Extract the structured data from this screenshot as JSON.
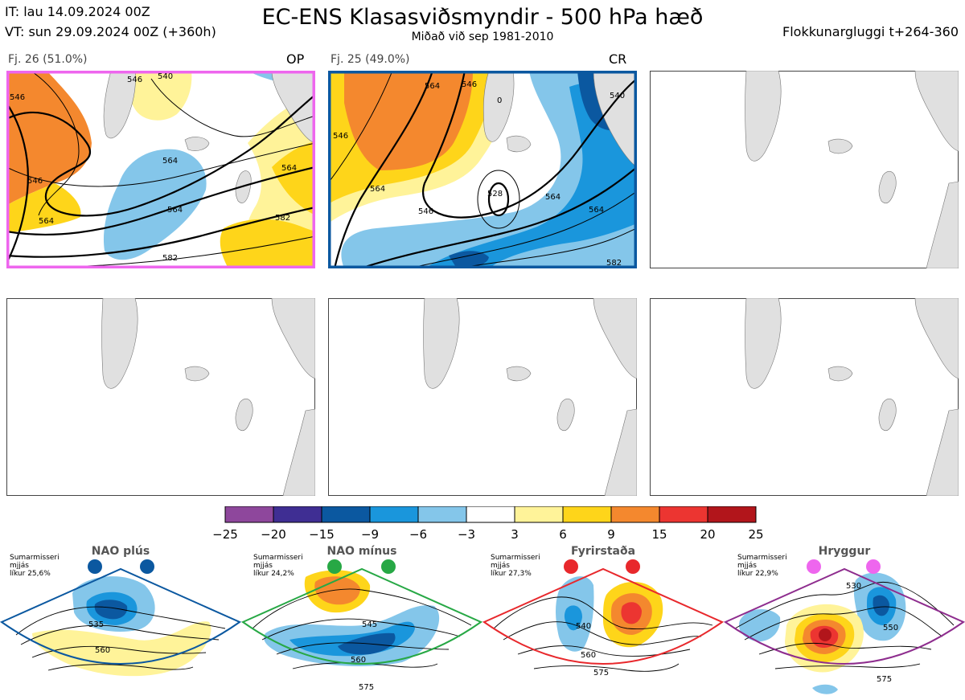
{
  "header": {
    "it_line": "IT: lau 14.09.2024 00Z",
    "vt_line": "VT: sun 29.09.2024 00Z  (+360h)",
    "title": "EC-ENS Klasasviðsmyndir - 500 hPa hæð",
    "subtitle": "Miðað við sep 1981-2010",
    "window": "Flokkunargluggi t+264-360"
  },
  "panels": [
    {
      "label": "Fj. 26 (51.0%)",
      "tag": "OP",
      "frame_color": "#ee66ee",
      "contours": [
        "546",
        "540",
        "546",
        "564",
        "564",
        "582",
        "546",
        "564",
        "564",
        "582"
      ]
    },
    {
      "label": "Fj. 25 (49.0%)",
      "tag": "CR",
      "frame_color": "#0b58a0",
      "contours": [
        "564",
        "546",
        "0",
        "546",
        "564",
        "528",
        "546",
        "564",
        "540",
        "564",
        "582"
      ]
    },
    {
      "label": "",
      "tag": "",
      "frame_color": "#444444",
      "contours": []
    },
    {
      "label": "",
      "tag": "",
      "frame_color": "#444444",
      "contours": []
    },
    {
      "label": "",
      "tag": "",
      "frame_color": "#444444",
      "contours": []
    },
    {
      "label": "",
      "tag": "",
      "frame_color": "#444444",
      "contours": []
    }
  ],
  "chart_data": {
    "type": "heatmap",
    "colorbar": {
      "ticks": [
        "−25",
        "−20",
        "−15",
        "−9",
        "−6",
        "−3",
        "3",
        "6",
        "9",
        "15",
        "20",
        "25"
      ],
      "colors": [
        "#8e479c",
        "#3f2e93",
        "#0b58a0",
        "#1a96dc",
        "#84c6ea",
        "#ffffff",
        "#fff399",
        "#fed51a",
        "#f4882e",
        "#ec3531",
        "#b2151b"
      ]
    }
  },
  "regimes": [
    {
      "name": "NAO plús",
      "info": "Sumarmisseri\nmjjás\nlíkur 25,6%",
      "frame_color": "#0b58a0",
      "dot_color": "#0b58a0",
      "contours": [
        "535",
        "560"
      ]
    },
    {
      "name": "NAO mínus",
      "info": "Sumarmisseri\nmjjás\nlíkur 24,2%",
      "frame_color": "#27a845",
      "dot_color": "#27a845",
      "contours": [
        "545",
        "560",
        "575"
      ]
    },
    {
      "name": "Fyrirstaða",
      "info": "Sumarmisseri\nmjjás\nlíkur 27,3%",
      "frame_color": "#e8282c",
      "dot_color": "#e8282c",
      "contours": [
        "540",
        "560",
        "575"
      ]
    },
    {
      "name": "Hryggur",
      "info": "Sumarmisseri\nmjjás\nlíkur 22,9%",
      "frame_color": "#8e2d8e",
      "dot_color": "#ee66ee",
      "contours": [
        "530",
        "550",
        "575"
      ]
    }
  ]
}
